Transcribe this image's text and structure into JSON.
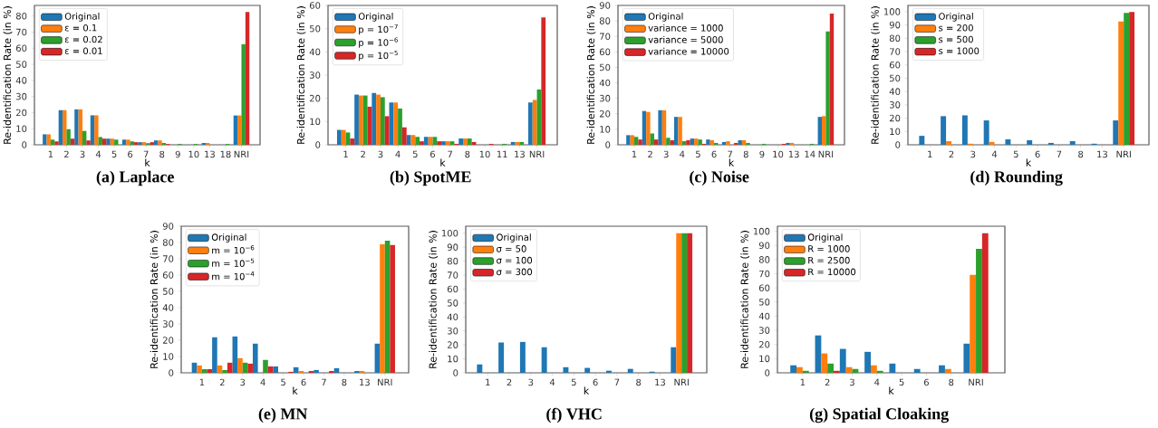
{
  "chart_data": [
    {
      "type": "bar",
      "title": "**(a) Laplace**",
      "xlabel": "k",
      "ylabel": "Re-identification Rate (in %)",
      "legend": "top left",
      "ylim": [
        0,
        86.6
      ],
      "yticks": [
        0,
        10,
        20,
        30,
        40,
        50,
        60,
        70,
        80
      ],
      "categories": [
        "1",
        "2",
        "3",
        "4",
        "5",
        "6",
        "7",
        "8",
        "9",
        "10",
        "13",
        "18",
        "NRI"
      ],
      "series": [
        {
          "name": "Original",
          "color": "#1f77b4",
          "values": [
            6.5,
            21.5,
            22,
            18.3,
            3.8,
            3.2,
            1.6,
            2.7,
            null,
            null,
            1.1,
            null,
            18.2
          ]
        },
        {
          "name": "ε = 0.1",
          "color": "#ff7f0e",
          "values": [
            6.5,
            21.5,
            22,
            18.3,
            3.8,
            3.2,
            1.6,
            2.7,
            null,
            null,
            1.1,
            null,
            18.2
          ]
        },
        {
          "name": "ε = 0.02",
          "color": "#2ca02c",
          "values": [
            3.2,
            9.7,
            8.6,
            4.8,
            3.2,
            2.1,
            1.0,
            1.1,
            0.5,
            0.5,
            null,
            0.5,
            62.5
          ]
        },
        {
          "name": "ε = 0.01",
          "color": "#d62728",
          "values": [
            2.1,
            3.8,
            2.7,
            3.8,
            null,
            1.6,
            1.6,
            0.5,
            null,
            null,
            null,
            null,
            82.5
          ]
        }
      ]
    },
    {
      "type": "bar",
      "title": "**(b) SpotME**",
      "xlabel": "k",
      "ylabel": "Re-identification Rate (in %)",
      "legend": "top left",
      "ylim": [
        0,
        60
      ],
      "yticks": [
        0,
        10,
        20,
        30,
        40,
        50,
        60
      ],
      "categories": [
        "1",
        "2",
        "3",
        "4",
        "5",
        "6",
        "7",
        "8",
        "10",
        "11",
        "13",
        "NRI"
      ],
      "series": [
        {
          "name": "Original",
          "color": "#1f77b4",
          "values": [
            6.4,
            21.6,
            22.3,
            18.2,
            4.2,
            3.4,
            1.5,
            2.7,
            null,
            null,
            1.2,
            18.2
          ]
        },
        {
          "name": "p = 10$^{−7}$",
          "color": "#ff7f0e",
          "values": [
            6.4,
            21.2,
            21.6,
            18.2,
            4.2,
            3.4,
            1.5,
            2.7,
            null,
            null,
            1.2,
            19.3
          ]
        },
        {
          "name": "p = 10$^{−6}$",
          "color": "#2ca02c",
          "values": [
            5.3,
            21.2,
            20.5,
            15.6,
            3.4,
            3.4,
            1.5,
            2.7,
            null,
            0.4,
            1.2,
            23.8
          ]
        },
        {
          "name": "p = 10$^{−5}$",
          "color": "#d62728",
          "values": [
            2.7,
            16.4,
            12.3,
            7.5,
            1.5,
            1.5,
            0.4,
            1.2,
            0.4,
            null,
            null,
            54.8
          ]
        }
      ]
    },
    {
      "type": "bar",
      "title": "**(c) Noise**",
      "xlabel": "k",
      "ylabel": "Re-identification Rate (in %)",
      "legend": "top left",
      "ylim": [
        0,
        90
      ],
      "yticks": [
        0,
        10,
        20,
        30,
        40,
        50,
        60,
        70,
        80,
        90
      ],
      "categories": [
        "1",
        "2",
        "3",
        "4",
        "5",
        "6",
        "7",
        "8",
        "9",
        "10",
        "13",
        "14",
        "NRI"
      ],
      "series": [
        {
          "name": "Original",
          "color": "#1f77b4",
          "values": [
            6.2,
            21.8,
            22.3,
            18,
            4,
            3.4,
            1.8,
            2.9,
            null,
            null,
            1.2,
            null,
            18
          ]
        },
        {
          "name": "variance = 1000",
          "color": "#ff7f0e",
          "values": [
            6.2,
            21.2,
            22.3,
            18,
            4,
            2.9,
            2.3,
            2.9,
            null,
            null,
            1.2,
            null,
            18.5
          ]
        },
        {
          "name": "variance = 5000",
          "color": "#2ca02c",
          "values": [
            5.1,
            7.3,
            4.5,
            2.3,
            3.4,
            1.2,
            null,
            1.2,
            0.6,
            null,
            null,
            0.6,
            73.2
          ]
        },
        {
          "name": "variance = 10000",
          "color": "#d62728",
          "values": [
            3.4,
            3.4,
            2.9,
            2.9,
            0.6,
            null,
            1.2,
            null,
            null,
            0.6,
            null,
            null,
            84.8
          ]
        }
      ]
    },
    {
      "type": "bar",
      "title": "**(d) Rounding**",
      "xlabel": "k",
      "ylabel": "Re-identification Rate (in %)",
      "legend": "top left",
      "ylim": [
        0,
        104.7
      ],
      "yticks": [
        0,
        10,
        20,
        30,
        40,
        50,
        60,
        70,
        80,
        90,
        100
      ],
      "categories": [
        "1",
        "2",
        "3",
        "4",
        "5",
        "6",
        "7",
        "8",
        "13",
        "NRI"
      ],
      "series": [
        {
          "name": "Original",
          "color": "#1f77b4",
          "values": [
            6.7,
            21.5,
            22.1,
            18.3,
            4.1,
            3.4,
            1.4,
            2.7,
            0.8,
            18.3
          ]
        },
        {
          "name": "s = 200",
          "color": "#ff7f0e",
          "values": [
            null,
            2.7,
            0.8,
            2.1,
            null,
            null,
            null,
            null,
            null,
            92.7
          ]
        },
        {
          "name": "s = 500",
          "color": "#2ca02c",
          "values": [
            null,
            null,
            null,
            null,
            null,
            null,
            null,
            null,
            null,
            99.1
          ]
        },
        {
          "name": "s = 1000",
          "color": "#d62728",
          "values": [
            null,
            null,
            null,
            null,
            null,
            null,
            null,
            null,
            null,
            99.7
          ]
        }
      ]
    },
    {
      "type": "bar",
      "title": "**(e) MN**",
      "xlabel": "k",
      "ylabel": "Re-identification Rate (in %)",
      "legend": "top left",
      "ylim": [
        0,
        90
      ],
      "yticks": [
        0,
        10,
        20,
        30,
        40,
        50,
        60,
        70,
        80,
        90
      ],
      "categories": [
        "1",
        "2",
        "3",
        "4",
        "5",
        "6",
        "7",
        "8",
        "13",
        "NRI"
      ],
      "series": [
        {
          "name": "Original",
          "color": "#1f77b4",
          "values": [
            6.2,
            21.8,
            22.3,
            17.9,
            3.9,
            3.4,
            1.7,
            2.8,
            1.1,
            17.9
          ]
        },
        {
          "name": "m = 10$^{−6}$",
          "color": "#ff7f0e",
          "values": [
            4.5,
            4.5,
            9.0,
            null,
            null,
            1.1,
            null,
            null,
            1.1,
            78.9
          ]
        },
        {
          "name": "m = 10$^{−5}$",
          "color": "#2ca02c",
          "values": [
            2.2,
            1.7,
            6.2,
            7.9,
            null,
            null,
            null,
            null,
            null,
            81.1
          ]
        },
        {
          "name": "m = 10$^{−4}$",
          "color": "#d62728",
          "values": [
            2.2,
            6.2,
            5.6,
            3.9,
            0.6,
            1.1,
            1.1,
            null,
            null,
            78.4
          ]
        }
      ]
    },
    {
      "type": "bar",
      "title": "**(f) VHC**",
      "xlabel": "k",
      "ylabel": "Re-identification Rate (in %)",
      "legend": "top left",
      "ylim": [
        0,
        105
      ],
      "yticks": [
        0,
        10,
        20,
        30,
        40,
        50,
        60,
        70,
        80,
        90,
        100
      ],
      "categories": [
        "1",
        "2",
        "3",
        "4",
        "5",
        "6",
        "7",
        "8",
        "13",
        "NRI"
      ],
      "series": [
        {
          "name": "Original",
          "color": "#1f77b4",
          "values": [
            6,
            21.7,
            22.1,
            18.3,
            4,
            3.5,
            1.5,
            2.8,
            0.8,
            18.3
          ]
        },
        {
          "name": "σ = 50",
          "color": "#ff7f0e",
          "values": [
            null,
            null,
            null,
            null,
            null,
            null,
            null,
            null,
            null,
            100
          ]
        },
        {
          "name": "σ = 100",
          "color": "#2ca02c",
          "values": [
            null,
            null,
            null,
            null,
            null,
            null,
            null,
            null,
            null,
            100
          ]
        },
        {
          "name": "σ = 300",
          "color": "#d62728",
          "values": [
            null,
            null,
            null,
            null,
            null,
            null,
            null,
            null,
            null,
            100
          ]
        }
      ]
    },
    {
      "type": "bar",
      "title": "**(g) Spatial Cloaking**",
      "xlabel": "k",
      "ylabel": "Re-identification Rate (in %)",
      "legend": "top left",
      "ylim": [
        0,
        103.6
      ],
      "yticks": [
        0,
        10,
        20,
        30,
        40,
        50,
        60,
        70,
        80,
        90,
        100
      ],
      "categories": [
        "1",
        "2",
        "3",
        "4",
        "5",
        "6",
        "8",
        "NRI"
      ],
      "series": [
        {
          "name": "Original",
          "color": "#1f77b4",
          "values": [
            5.3,
            26.4,
            16.9,
            14.8,
            6.5,
            2.7,
            5.3,
            20.6
          ]
        },
        {
          "name": "R = 1000",
          "color": "#ff7f0e",
          "values": [
            4.0,
            13.7,
            4.0,
            5.3,
            null,
            null,
            2.7,
            69.2
          ]
        },
        {
          "name": "R = 2500",
          "color": "#2ca02c",
          "values": [
            1.4,
            6.5,
            2.7,
            1.4,
            null,
            null,
            null,
            87.6
          ]
        },
        {
          "name": "R = 10000",
          "color": "#d62728",
          "values": [
            null,
            1.4,
            null,
            null,
            null,
            null,
            null,
            98.7
          ]
        }
      ]
    }
  ]
}
